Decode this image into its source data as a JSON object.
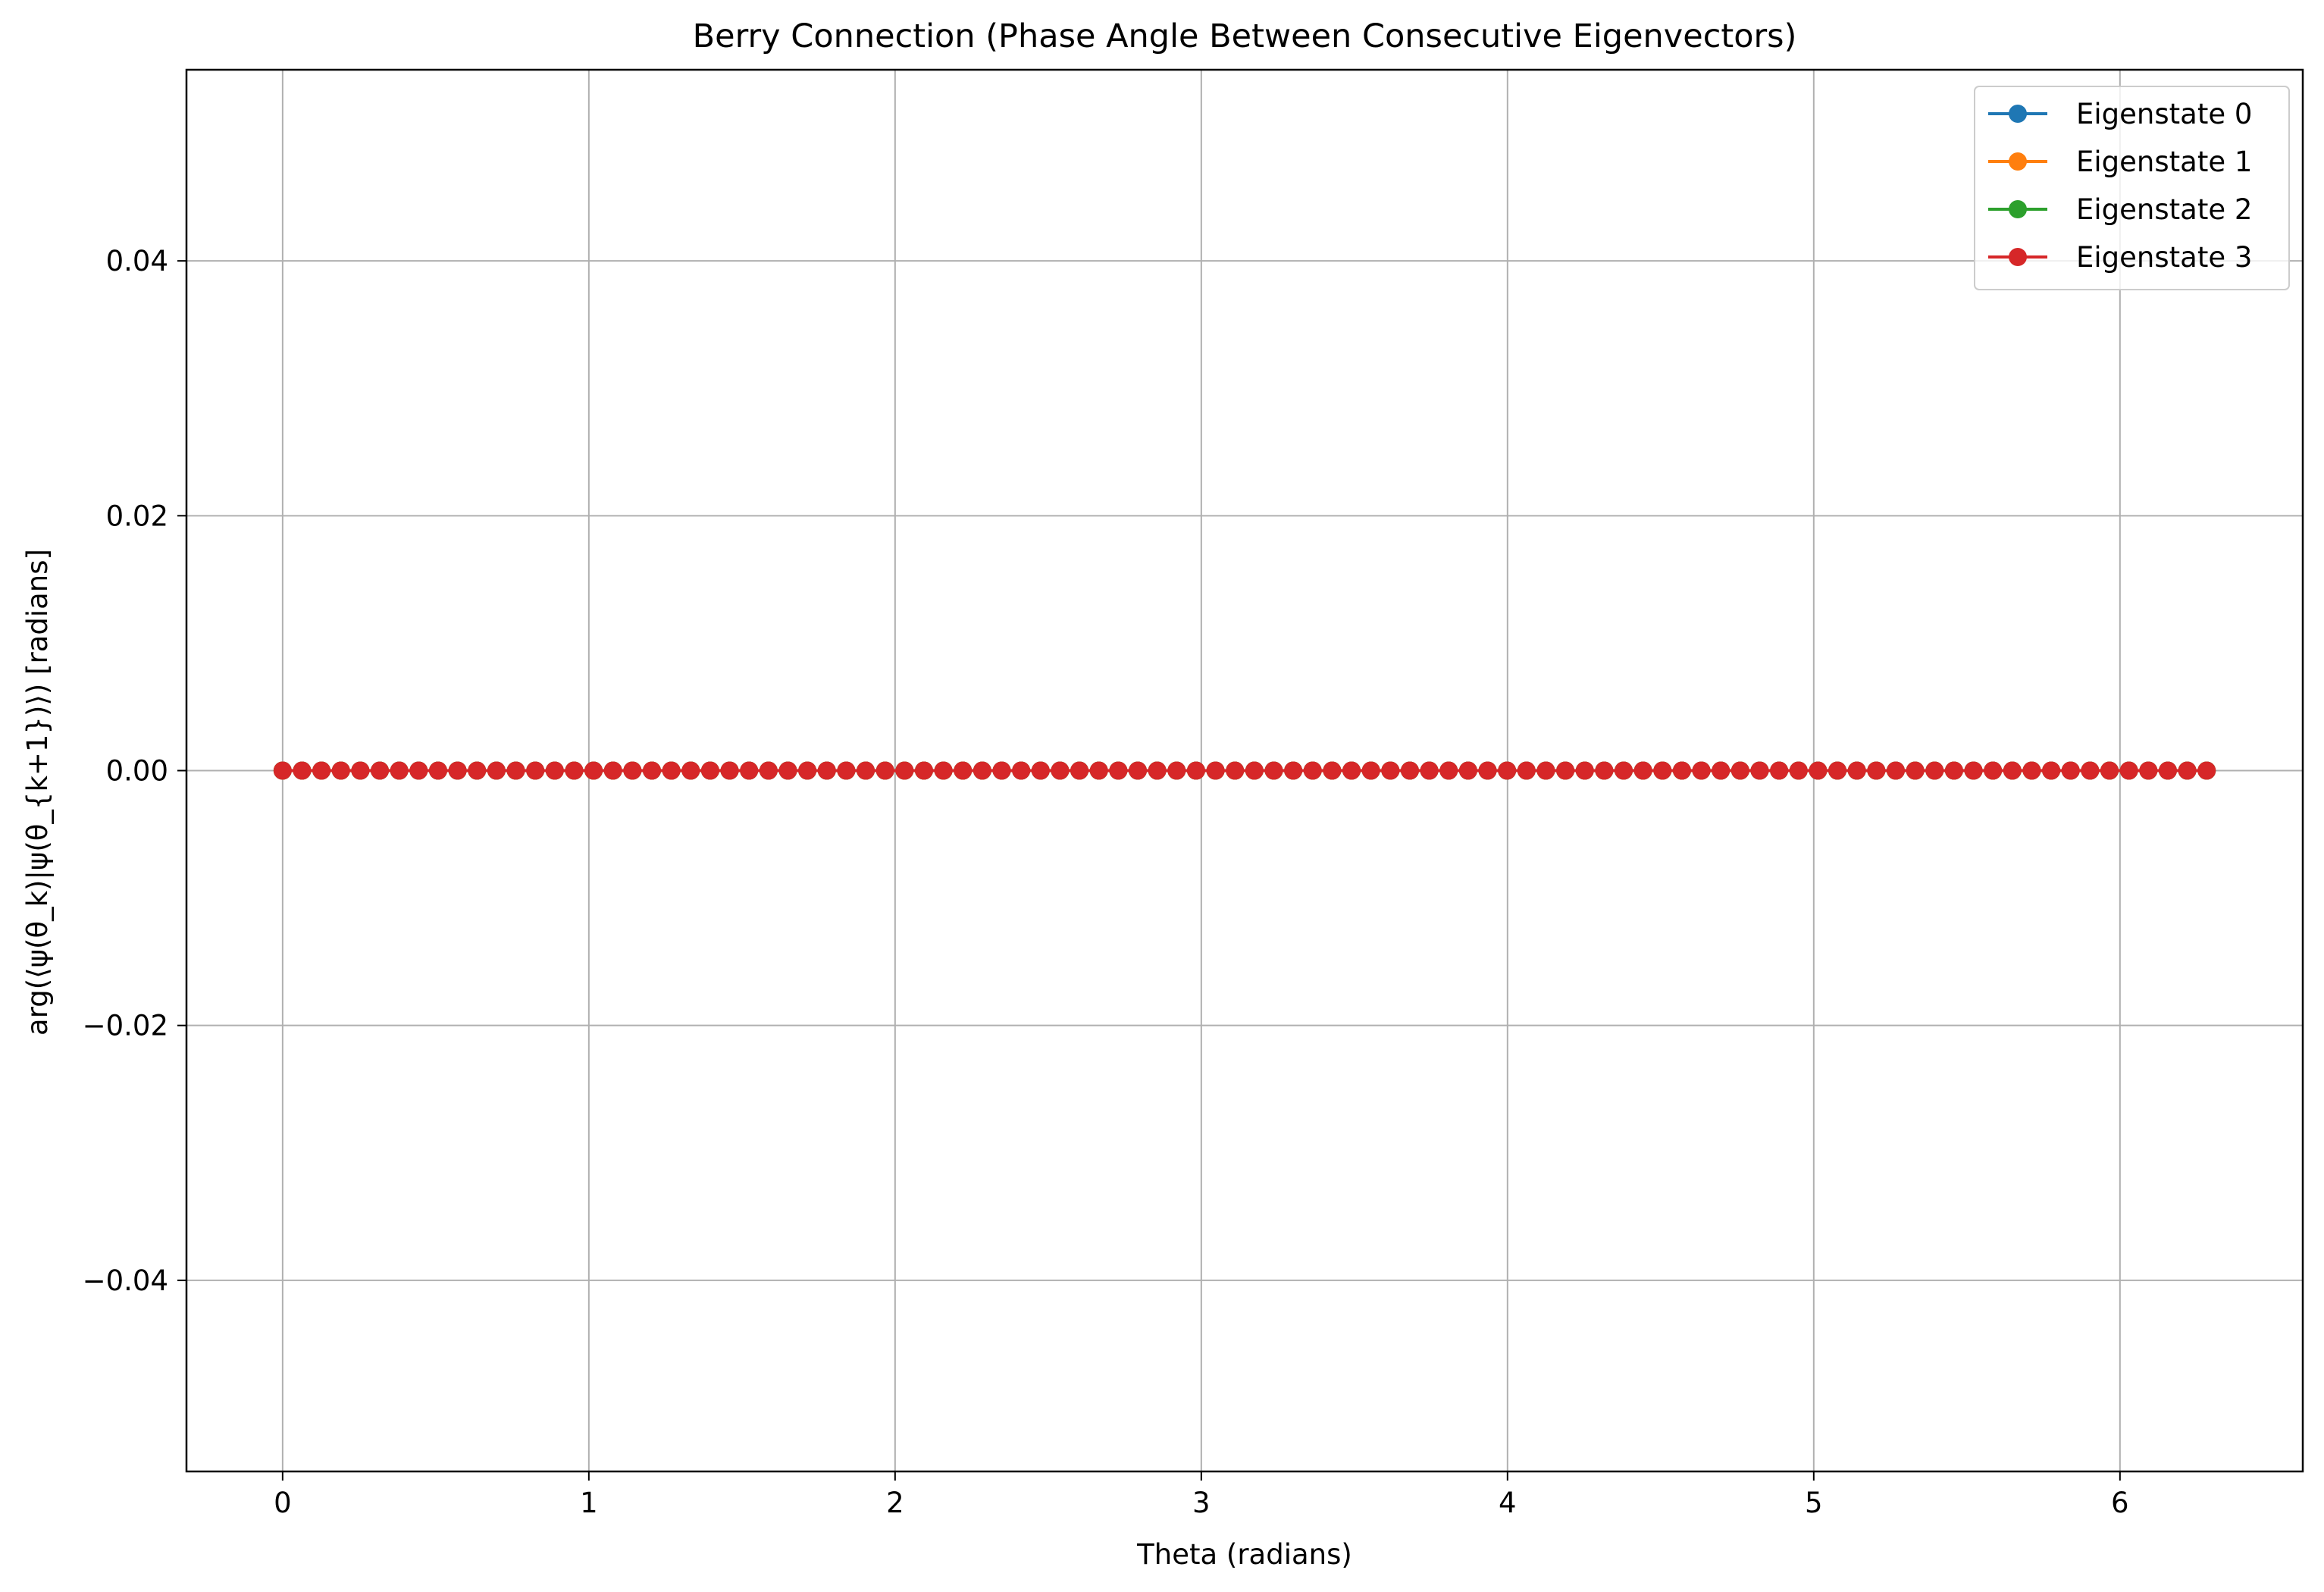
{
  "chart_data": {
    "type": "line",
    "title": "Berry Connection (Phase Angle Between Consecutive Eigenvectors)",
    "xlabel": "Theta (radians)",
    "ylabel": "arg(⟨ψ(θ_k)|ψ(θ_{k+1})⟩) [radians]",
    "xlim": [
      -0.314,
      6.597
    ],
    "ylim": [
      -0.055,
      0.055
    ],
    "x_ticks": [
      0,
      1,
      2,
      3,
      4,
      5,
      6
    ],
    "x_tick_labels": [
      "0",
      "1",
      "2",
      "3",
      "4",
      "5",
      "6"
    ],
    "y_ticks": [
      0.04,
      0.02,
      0.0,
      -0.02,
      -0.04
    ],
    "y_tick_labels": [
      "0.04",
      "0.02",
      "0.00",
      "−0.02",
      "−0.04"
    ],
    "grid": true,
    "legend_position": "top-right",
    "x_range": {
      "start": 0,
      "end": 6.2832,
      "num_points": 100
    },
    "series": [
      {
        "name": "Eigenstate 0",
        "color": "#1f77b4",
        "marker": "circle",
        "constant_value": 0.0
      },
      {
        "name": "Eigenstate 1",
        "color": "#ff7f0e",
        "marker": "circle",
        "constant_value": 0.0
      },
      {
        "name": "Eigenstate 2",
        "color": "#2ca02c",
        "marker": "circle",
        "constant_value": 0.0
      },
      {
        "name": "Eigenstate 3",
        "color": "#d62728",
        "marker": "circle",
        "constant_value": 0.0
      }
    ]
  }
}
